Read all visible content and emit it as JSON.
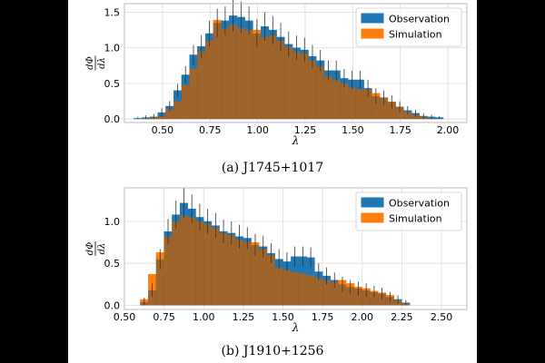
{
  "colors": {
    "observation": "#1f77b4",
    "simulation": "#ff7f0e",
    "overlap": "#a0652a",
    "grid": "#dddddd",
    "errorbar": "#333333"
  },
  "chart_data": [
    {
      "type": "bar",
      "caption": "(a) J1745+1017",
      "xlabel": "λ",
      "ylabel_num": "dΦ",
      "ylabel_den": "dλ",
      "xlim": [
        0.3,
        2.1
      ],
      "ylim": [
        -0.05,
        1.62
      ],
      "xticks": [
        0.5,
        0.75,
        1.0,
        1.25,
        1.5,
        1.75,
        2.0
      ],
      "xtick_labels": [
        "0.50",
        "0.75",
        "1.00",
        "1.25",
        "1.50",
        "1.75",
        "2.00"
      ],
      "yticks": [
        0.0,
        0.5,
        1.0,
        1.5
      ],
      "ytick_labels": [
        "0.0",
        "0.5",
        "1.0",
        "1.5"
      ],
      "bin_start": 0.35,
      "bin_width": 0.0417,
      "series": [
        {
          "name": "Observation",
          "values": [
            0.01,
            0.02,
            0.03,
            0.09,
            0.18,
            0.4,
            0.62,
            0.9,
            1.02,
            1.2,
            1.35,
            1.38,
            1.45,
            1.43,
            1.38,
            1.2,
            1.3,
            1.25,
            1.15,
            1.05,
            1.0,
            0.97,
            0.88,
            0.82,
            0.68,
            0.68,
            0.57,
            0.55,
            0.55,
            0.43,
            0.32,
            0.3,
            0.24,
            0.17,
            0.12,
            0.08,
            0.04,
            0.03,
            0.02
          ]
        },
        {
          "name": "Simulation",
          "values": [
            0.0,
            0.01,
            0.02,
            0.04,
            0.14,
            0.25,
            0.48,
            0.71,
            0.95,
            1.1,
            1.39,
            1.27,
            1.33,
            1.28,
            1.25,
            1.25,
            1.15,
            1.18,
            1.1,
            1.02,
            0.95,
            0.92,
            0.82,
            0.74,
            0.6,
            0.55,
            0.5,
            0.44,
            0.42,
            0.42,
            0.36,
            0.3,
            0.24,
            0.17,
            0.1,
            0.06,
            0.03,
            0.01,
            0.0
          ]
        }
      ],
      "errors": [
        0.02,
        0.03,
        0.04,
        0.06,
        0.07,
        0.09,
        0.12,
        0.14,
        0.16,
        0.18,
        0.2,
        0.2,
        0.22,
        0.22,
        0.2,
        0.2,
        0.2,
        0.2,
        0.2,
        0.18,
        0.17,
        0.17,
        0.16,
        0.15,
        0.14,
        0.14,
        0.13,
        0.13,
        0.13,
        0.12,
        0.11,
        0.1,
        0.09,
        0.08,
        0.06,
        0.05,
        0.04,
        0.03,
        0.02
      ],
      "legend": "top-right"
    },
    {
      "type": "bar",
      "caption": "(b) J1910+1256",
      "xlabel": "λ",
      "ylabel_num": "dΦ",
      "ylabel_den": "dλ",
      "xlim": [
        0.5,
        2.66
      ],
      "ylim": [
        -0.05,
        1.4
      ],
      "xticks": [
        0.5,
        0.75,
        1.0,
        1.25,
        1.5,
        1.75,
        2.0,
        2.25,
        2.5
      ],
      "xtick_labels": [
        "0.50",
        "0.75",
        "1.00",
        "1.25",
        "1.50",
        "1.75",
        "2.00",
        "2.25",
        "2.50"
      ],
      "yticks": [
        0.0,
        0.5,
        1.0
      ],
      "ytick_labels": [
        "0.0",
        "0.5",
        "1.0"
      ],
      "bin_start": 0.6,
      "bin_width": 0.05,
      "series": [
        {
          "name": "Observation",
          "values": [
            0.04,
            0.18,
            0.55,
            0.88,
            1.08,
            1.22,
            1.15,
            1.05,
            1.0,
            0.95,
            0.88,
            0.86,
            0.82,
            0.8,
            0.72,
            0.7,
            0.62,
            0.55,
            0.52,
            0.58,
            0.58,
            0.57,
            0.4,
            0.35,
            0.3,
            0.25,
            0.22,
            0.2,
            0.18,
            0.16,
            0.14,
            0.1,
            0.07,
            0.03
          ]
        },
        {
          "name": "Simulation",
          "values": [
            0.07,
            0.37,
            0.63,
            0.82,
            1.0,
            1.07,
            1.05,
            1.0,
            0.97,
            0.92,
            0.86,
            0.84,
            0.78,
            0.76,
            0.75,
            0.67,
            0.6,
            0.45,
            0.42,
            0.4,
            0.38,
            0.36,
            0.33,
            0.3,
            0.28,
            0.3,
            0.26,
            0.22,
            0.2,
            0.17,
            0.15,
            0.12,
            0.06,
            0.02
          ]
        }
      ],
      "errors": [
        0.05,
        0.08,
        0.12,
        0.15,
        0.17,
        0.18,
        0.17,
        0.16,
        0.15,
        0.15,
        0.14,
        0.14,
        0.14,
        0.13,
        0.13,
        0.13,
        0.12,
        0.12,
        0.11,
        0.12,
        0.12,
        0.12,
        0.1,
        0.1,
        0.09,
        0.09,
        0.08,
        0.08,
        0.08,
        0.07,
        0.07,
        0.06,
        0.05,
        0.03
      ],
      "legend": "top-right"
    }
  ]
}
